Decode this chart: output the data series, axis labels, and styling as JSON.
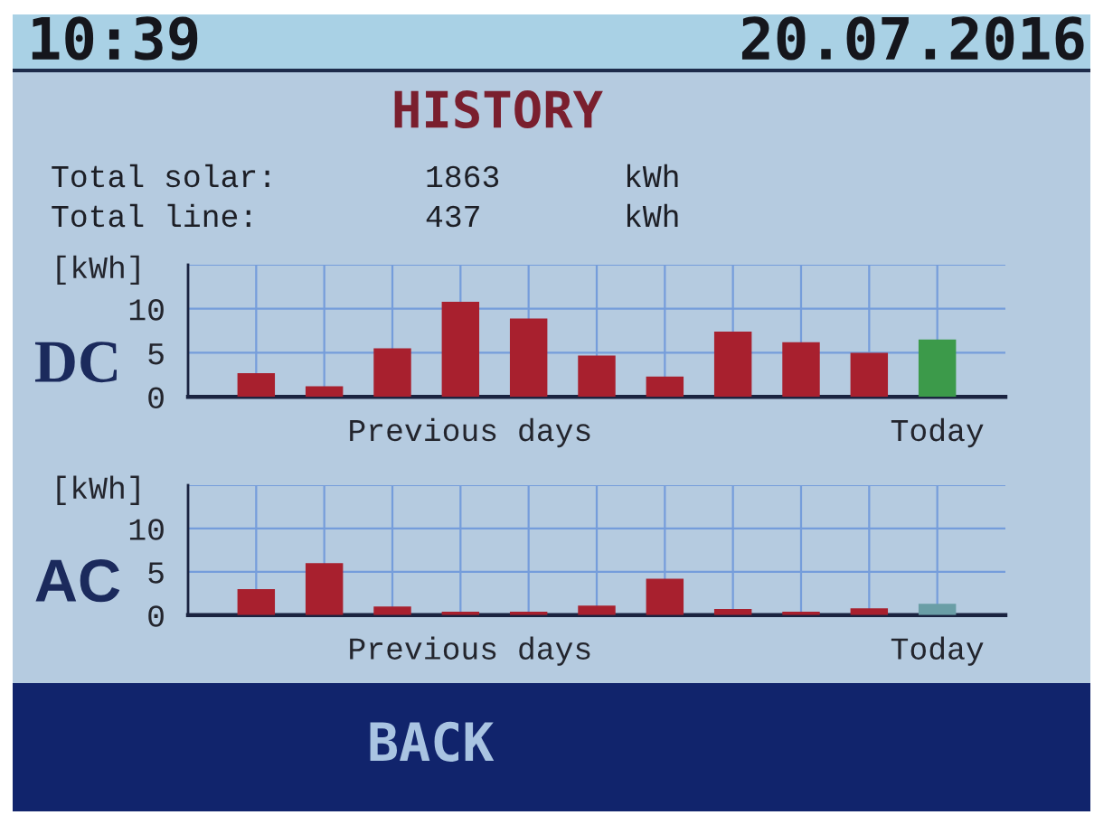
{
  "chart_data": [
    {
      "type": "other",
      "title": "HISTORY",
      "annotations": [
        "10:39",
        "20.07.2016",
        "Total solar:",
        "1863",
        "kWh",
        "Total line:",
        "437",
        "kWh",
        "BACK"
      ]
    },
    {
      "type": "bar",
      "title": "DC",
      "ylabel": "[kWh]",
      "xlabel": "Previous days",
      "categories": [
        null,
        null,
        null,
        null,
        null,
        null,
        null,
        null,
        null,
        null,
        "Today"
      ],
      "values": [
        2.7,
        1.2,
        5.5,
        10.8,
        8.9,
        4.7,
        2.3,
        7.4,
        6.2,
        5.0,
        6.5
      ],
      "colors": [
        "#a8202e",
        "#a8202e",
        "#a8202e",
        "#a8202e",
        "#a8202e",
        "#a8202e",
        "#a8202e",
        "#a8202e",
        "#a8202e",
        "#a8202e",
        "#3c9a4a"
      ],
      "ylim": [
        0,
        15
      ],
      "yticks": [
        0,
        5,
        10,
        {
          "value": 15,
          "label": null
        }
      ],
      "grid": true
    },
    {
      "type": "bar",
      "title": "AC",
      "ylabel": "[kWh]",
      "xlabel": "Previous days",
      "categories": [
        null,
        null,
        null,
        null,
        null,
        null,
        null,
        null,
        null,
        null,
        "Today"
      ],
      "values": [
        3.0,
        6.0,
        1.0,
        0.4,
        0.4,
        1.1,
        4.2,
        0.7,
        0.4,
        0.8,
        1.3
      ],
      "colors": [
        "#a8202e",
        "#a8202e",
        "#a8202e",
        "#a8202e",
        "#a8202e",
        "#a8202e",
        "#a8202e",
        "#a8202e",
        "#a8202e",
        "#a8202e",
        "#6a9ea6"
      ],
      "ylim": [
        0,
        15
      ],
      "yticks": [
        0,
        5,
        10,
        {
          "value": 15,
          "label": null
        }
      ],
      "grid": true
    }
  ]
}
